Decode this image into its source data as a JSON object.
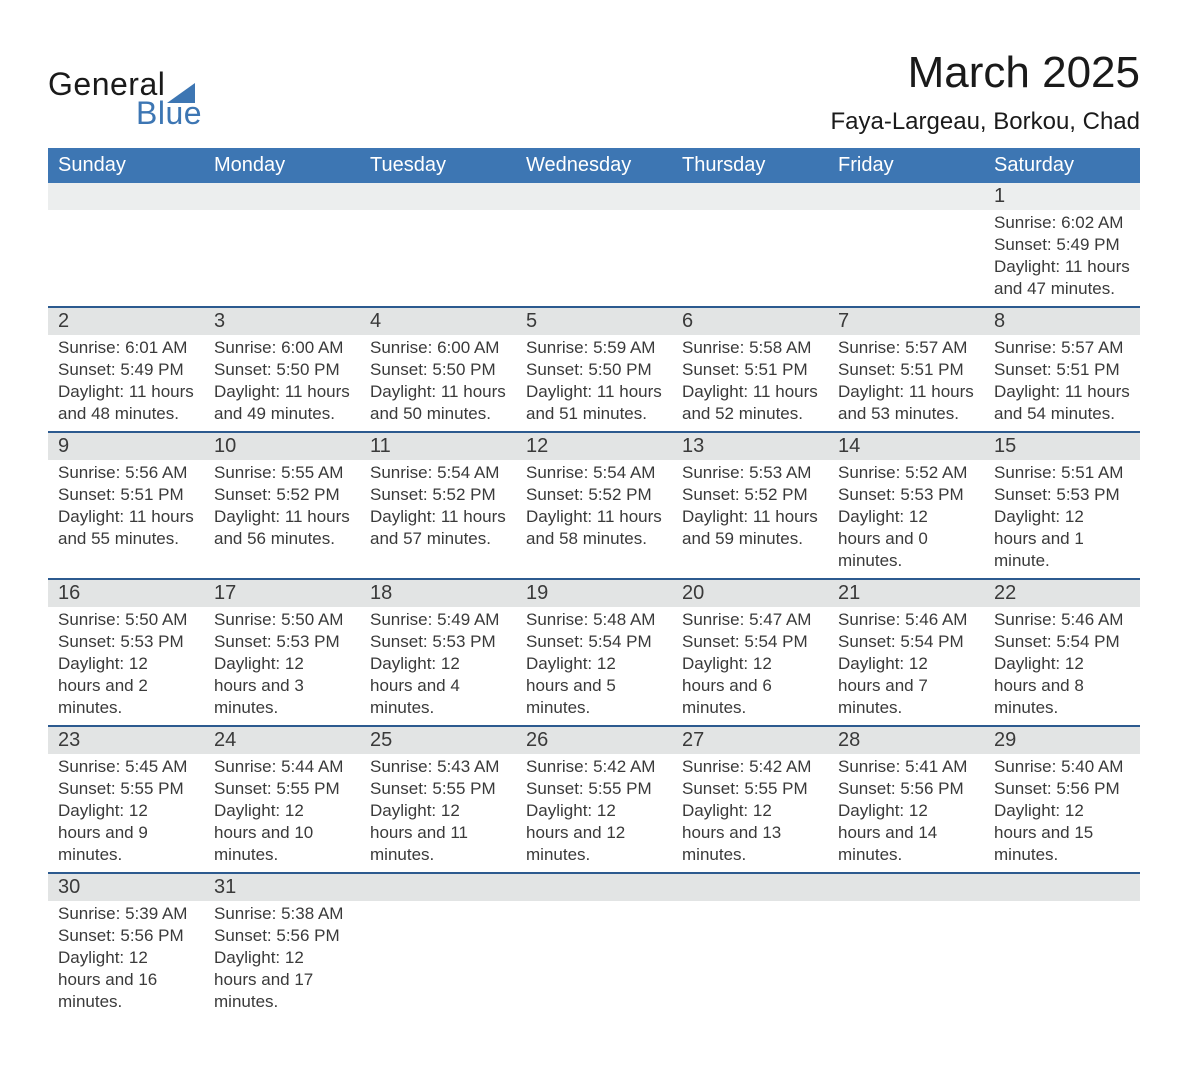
{
  "colors": {
    "header_blue": "#3d76b3",
    "rule_blue": "#2c5a8f",
    "row_alt": "#eceeee",
    "row_header": "#e2e4e4",
    "text": "#3a3a3a",
    "background": "#ffffff"
  },
  "typography": {
    "family": "Arial",
    "title_size_pt": 33,
    "location_size_pt": 18,
    "dayheader_size_pt": 15,
    "daynum_size_pt": 15,
    "body_size_pt": 13
  },
  "logo": {
    "line1": "General",
    "line2": "Blue"
  },
  "title": "March 2025",
  "location": "Faya-Largeau, Borkou, Chad",
  "day_headers": [
    "Sunday",
    "Monday",
    "Tuesday",
    "Wednesday",
    "Thursday",
    "Friday",
    "Saturday"
  ],
  "weeks": [
    [
      null,
      null,
      null,
      null,
      null,
      null,
      {
        "n": "1",
        "sunrise": "Sunrise: 6:02 AM",
        "sunset": "Sunset: 5:49 PM",
        "daylight": "Daylight: 11 hours and 47 minutes."
      }
    ],
    [
      {
        "n": "2",
        "sunrise": "Sunrise: 6:01 AM",
        "sunset": "Sunset: 5:49 PM",
        "daylight": "Daylight: 11 hours and 48 minutes."
      },
      {
        "n": "3",
        "sunrise": "Sunrise: 6:00 AM",
        "sunset": "Sunset: 5:50 PM",
        "daylight": "Daylight: 11 hours and 49 minutes."
      },
      {
        "n": "4",
        "sunrise": "Sunrise: 6:00 AM",
        "sunset": "Sunset: 5:50 PM",
        "daylight": "Daylight: 11 hours and 50 minutes."
      },
      {
        "n": "5",
        "sunrise": "Sunrise: 5:59 AM",
        "sunset": "Sunset: 5:50 PM",
        "daylight": "Daylight: 11 hours and 51 minutes."
      },
      {
        "n": "6",
        "sunrise": "Sunrise: 5:58 AM",
        "sunset": "Sunset: 5:51 PM",
        "daylight": "Daylight: 11 hours and 52 minutes."
      },
      {
        "n": "7",
        "sunrise": "Sunrise: 5:57 AM",
        "sunset": "Sunset: 5:51 PM",
        "daylight": "Daylight: 11 hours and 53 minutes."
      },
      {
        "n": "8",
        "sunrise": "Sunrise: 5:57 AM",
        "sunset": "Sunset: 5:51 PM",
        "daylight": "Daylight: 11 hours and 54 minutes."
      }
    ],
    [
      {
        "n": "9",
        "sunrise": "Sunrise: 5:56 AM",
        "sunset": "Sunset: 5:51 PM",
        "daylight": "Daylight: 11 hours and 55 minutes."
      },
      {
        "n": "10",
        "sunrise": "Sunrise: 5:55 AM",
        "sunset": "Sunset: 5:52 PM",
        "daylight": "Daylight: 11 hours and 56 minutes."
      },
      {
        "n": "11",
        "sunrise": "Sunrise: 5:54 AM",
        "sunset": "Sunset: 5:52 PM",
        "daylight": "Daylight: 11 hours and 57 minutes."
      },
      {
        "n": "12",
        "sunrise": "Sunrise: 5:54 AM",
        "sunset": "Sunset: 5:52 PM",
        "daylight": "Daylight: 11 hours and 58 minutes."
      },
      {
        "n": "13",
        "sunrise": "Sunrise: 5:53 AM",
        "sunset": "Sunset: 5:52 PM",
        "daylight": "Daylight: 11 hours and 59 minutes."
      },
      {
        "n": "14",
        "sunrise": "Sunrise: 5:52 AM",
        "sunset": "Sunset: 5:53 PM",
        "daylight": "Daylight: 12 hours and 0 minutes."
      },
      {
        "n": "15",
        "sunrise": "Sunrise: 5:51 AM",
        "sunset": "Sunset: 5:53 PM",
        "daylight": "Daylight: 12 hours and 1 minute."
      }
    ],
    [
      {
        "n": "16",
        "sunrise": "Sunrise: 5:50 AM",
        "sunset": "Sunset: 5:53 PM",
        "daylight": "Daylight: 12 hours and 2 minutes."
      },
      {
        "n": "17",
        "sunrise": "Sunrise: 5:50 AM",
        "sunset": "Sunset: 5:53 PM",
        "daylight": "Daylight: 12 hours and 3 minutes."
      },
      {
        "n": "18",
        "sunrise": "Sunrise: 5:49 AM",
        "sunset": "Sunset: 5:53 PM",
        "daylight": "Daylight: 12 hours and 4 minutes."
      },
      {
        "n": "19",
        "sunrise": "Sunrise: 5:48 AM",
        "sunset": "Sunset: 5:54 PM",
        "daylight": "Daylight: 12 hours and 5 minutes."
      },
      {
        "n": "20",
        "sunrise": "Sunrise: 5:47 AM",
        "sunset": "Sunset: 5:54 PM",
        "daylight": "Daylight: 12 hours and 6 minutes."
      },
      {
        "n": "21",
        "sunrise": "Sunrise: 5:46 AM",
        "sunset": "Sunset: 5:54 PM",
        "daylight": "Daylight: 12 hours and 7 minutes."
      },
      {
        "n": "22",
        "sunrise": "Sunrise: 5:46 AM",
        "sunset": "Sunset: 5:54 PM",
        "daylight": "Daylight: 12 hours and 8 minutes."
      }
    ],
    [
      {
        "n": "23",
        "sunrise": "Sunrise: 5:45 AM",
        "sunset": "Sunset: 5:55 PM",
        "daylight": "Daylight: 12 hours and 9 minutes."
      },
      {
        "n": "24",
        "sunrise": "Sunrise: 5:44 AM",
        "sunset": "Sunset: 5:55 PM",
        "daylight": "Daylight: 12 hours and 10 minutes."
      },
      {
        "n": "25",
        "sunrise": "Sunrise: 5:43 AM",
        "sunset": "Sunset: 5:55 PM",
        "daylight": "Daylight: 12 hours and 11 minutes."
      },
      {
        "n": "26",
        "sunrise": "Sunrise: 5:42 AM",
        "sunset": "Sunset: 5:55 PM",
        "daylight": "Daylight: 12 hours and 12 minutes."
      },
      {
        "n": "27",
        "sunrise": "Sunrise: 5:42 AM",
        "sunset": "Sunset: 5:55 PM",
        "daylight": "Daylight: 12 hours and 13 minutes."
      },
      {
        "n": "28",
        "sunrise": "Sunrise: 5:41 AM",
        "sunset": "Sunset: 5:56 PM",
        "daylight": "Daylight: 12 hours and 14 minutes."
      },
      {
        "n": "29",
        "sunrise": "Sunrise: 5:40 AM",
        "sunset": "Sunset: 5:56 PM",
        "daylight": "Daylight: 12 hours and 15 minutes."
      }
    ],
    [
      {
        "n": "30",
        "sunrise": "Sunrise: 5:39 AM",
        "sunset": "Sunset: 5:56 PM",
        "daylight": "Daylight: 12 hours and 16 minutes."
      },
      {
        "n": "31",
        "sunrise": "Sunrise: 5:38 AM",
        "sunset": "Sunset: 5:56 PM",
        "daylight": "Daylight: 12 hours and 17 minutes."
      },
      null,
      null,
      null,
      null,
      null
    ]
  ]
}
